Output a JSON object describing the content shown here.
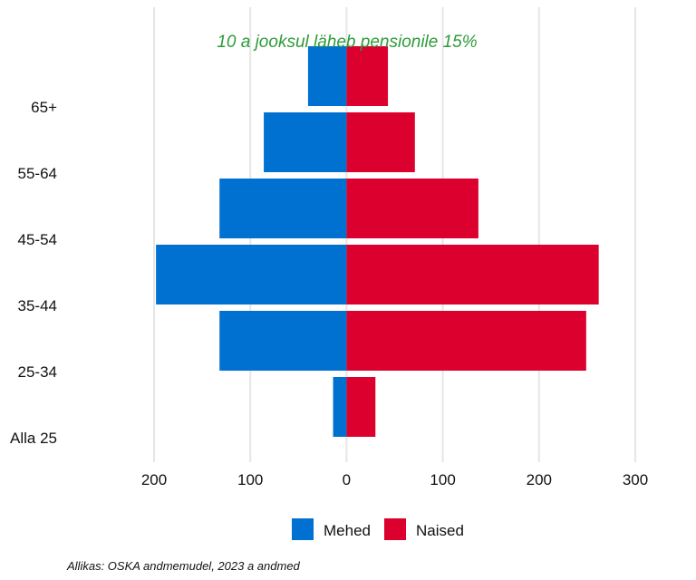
{
  "chart_data": {
    "type": "bar",
    "orientation": "horizontal",
    "layout": "population-pyramid",
    "title": "",
    "annotation": "10 a jooksul läheb pensionile 15%",
    "source": "Allikas: OSKA andmemudel, 2023 a andmed",
    "categories": [
      "65+",
      "55-64",
      "45-54",
      "35-44",
      "25-34",
      "Alla 25"
    ],
    "series": [
      {
        "name": "Mehed",
        "color": "#0070d1",
        "side": "left",
        "values": [
          40,
          86,
          132,
          198,
          132,
          14
        ]
      },
      {
        "name": "Naised",
        "color": "#dc002e",
        "side": "right",
        "values": [
          43,
          71,
          137,
          262,
          249,
          30
        ]
      }
    ],
    "xticks": [
      {
        "value": -200,
        "label": "200"
      },
      {
        "value": -100,
        "label": "100"
      },
      {
        "value": 0,
        "label": "0"
      },
      {
        "value": 100,
        "label": "100"
      },
      {
        "value": 200,
        "label": "200"
      },
      {
        "value": 300,
        "label": "300"
      }
    ],
    "xlim": [
      -200,
      300
    ],
    "xlabel": "",
    "ylabel": "",
    "grid": "vertical",
    "legend": "bottom-center",
    "annotation_color": "#2e9b3a",
    "grid_color": "#e6e6e6"
  }
}
